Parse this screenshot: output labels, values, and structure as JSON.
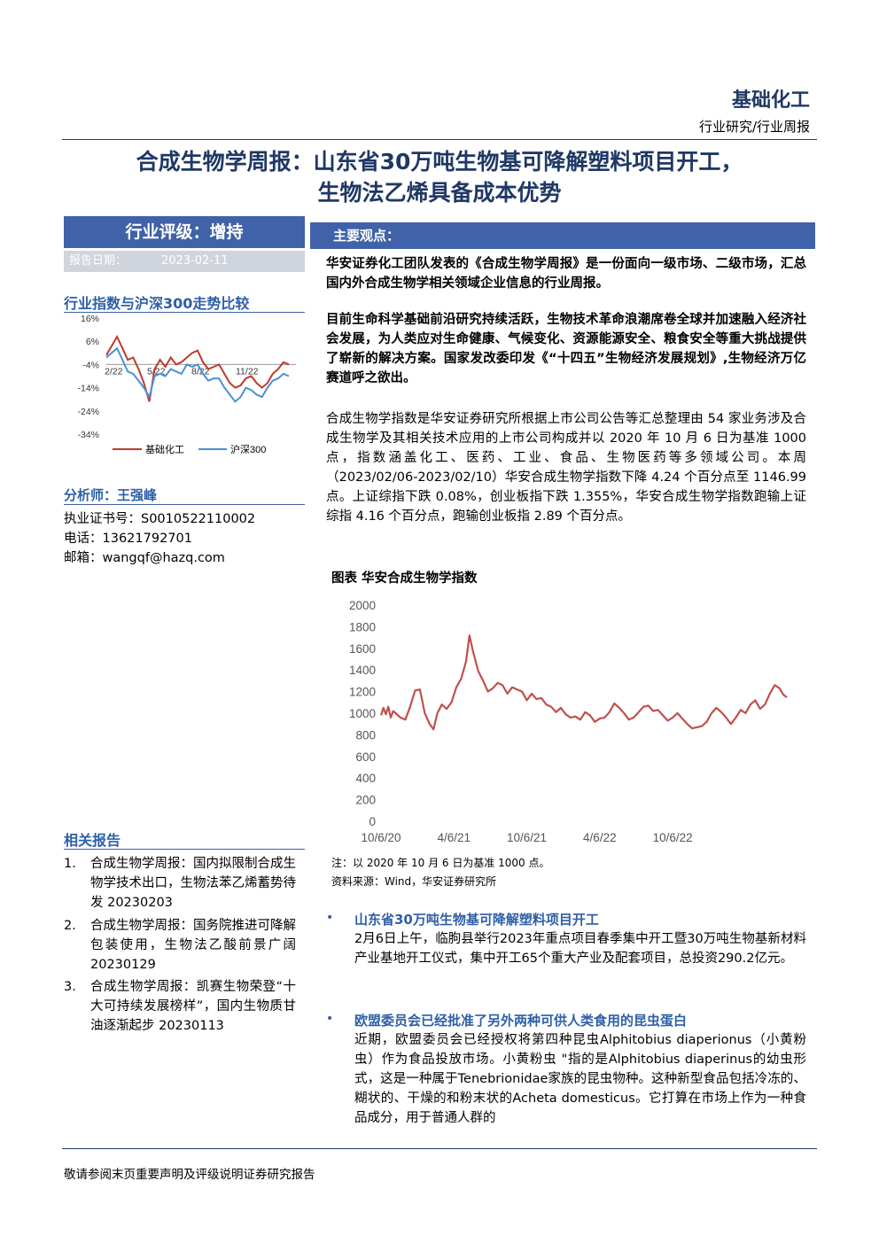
{
  "header": {
    "sector": "基础化工",
    "category": "行业研究/行业周报"
  },
  "title": {
    "line1": "合成生物学周报：山东省30万吨生物基可降解塑料项目开工，",
    "line2": "生物法乙烯具备成本优势"
  },
  "sidebar": {
    "rating_label": "行业评级：增持",
    "report_date_label": "报告日期：",
    "report_date": "2023-02-11",
    "index_compare_title": "行业指数与沪深300走势比较",
    "mini_chart": {
      "y_ticks": [
        "16%",
        "6%",
        "-4%",
        "-14%",
        "-24%",
        "-34%"
      ],
      "x_ticks": [
        "2/22",
        "5/22",
        "8/22",
        "11/22"
      ],
      "legend": [
        "基础化工",
        "沪深300"
      ],
      "colors": {
        "series1": "#c0392b",
        "series2": "#4a90d9"
      }
    },
    "analyst_label": "分析师：王强峰",
    "cert": "执业证书号：S0010522110002",
    "phone": "电话：13621792701",
    "email": "邮箱：wangqf@hazq.com",
    "related_title": "相关报告",
    "related": [
      {
        "num": "1.",
        "text": "合成生物学周报：国内拟限制合成生物学技术出口，生物法苯乙烯蓄势待发 20230203"
      },
      {
        "num": "2.",
        "text": "合成生物学周报：国务院推进可降解包装使用，生物法乙酸前景广阔 20230129"
      },
      {
        "num": "3.",
        "text": "合成生物学周报：凯赛生物荣登“十大可持续发展榜样”，国内生物质甘油逐渐起步 20230113"
      }
    ]
  },
  "main": {
    "key_points_label": "主要观点：",
    "p1": "华安证券化工团队发表的《合成生物学周报》是一份面向一级市场、二级市场，汇总国内外合成生物学相关领域企业信息的行业周报。",
    "p2": "目前生命科学基础前沿研究持续活跃，生物技术革命浪潮席卷全球并加速融入经济社会发展，为人类应对生命健康、气候变化、资源能源安全、粮食安全等重大挑战提供了崭新的解决方案。国家发改委印发《“十四五”生物经济发展规划》,生物经济万亿赛道呼之欲出。",
    "p3": "合成生物学指数是华安证券研究所根据上市公司公告等汇总整理由 54 家业务涉及合成生物学及其相关技术应用的上市公司构成并以 2020 年 10 月 6 日为基准 1000 点，指数涵盖化工、医药、工业、食品、生物医药等多领域公司。本周（2023/02/06-2023/02/10）华安合成生物学指数下降 4.24 个百分点至 1146.99 点。上证综指下跌 0.08%，创业板指下跌 1.355%，华安合成生物学指数跑输上证综指 4.16 个百分点，跑输创业板指 2.89 个百分点。",
    "chart_title": "图表 华安合成生物学指数",
    "chart_note": "注：以 2020 年 10 月 6 日为基准 1000 点。",
    "chart_source": "资料来源：Wind，华安证券研究所",
    "news1_title": "山东省30万吨生物基可降解塑料项目开工",
    "news1_body": "2月6日上午，临朐县举行2023年重点项目春季集中开工暨30万吨生物基新材料产业基地开工仪式，集中开工65个重大产业及配套项目，总投资290.2亿元。",
    "news2_title": "欧盟委员会已经批准了另外两种可供人类食用的昆虫蛋白",
    "news2_body": "近期，欧盟委员会已经授权将第四种昆虫Alphitobius diaperionus（小黄粉虫）作为食品投放市场。小黄粉虫 \"指的是Alphitobius diaperinus的幼虫形式，这是一种属于Tenebrionidae家族的昆虫物种。这种新型食品包括冷冻的、糊状的、干燥的和粉末状的Acheta domesticus。它打算在市场上作为一种食品成分，用于普通人群的"
  },
  "footer": {
    "disclaimer": "敬请参阅末页重要声明及评级说明证券研究报告"
  },
  "chart_data": {
    "type": "line",
    "title": "图表 华安合成生物学指数",
    "x_ticks": [
      "10/6/20",
      "4/6/21",
      "10/6/21",
      "4/6/22",
      "10/6/22"
    ],
    "ylim": [
      0,
      2000
    ],
    "y_ticks": [
      0,
      200,
      400,
      600,
      800,
      1000,
      1200,
      1400,
      1600,
      1800,
      2000
    ],
    "grid": false,
    "color": "#c0504d",
    "series": [
      {
        "x": [
          0,
          5,
          10,
          15,
          20,
          25,
          30,
          40,
          50,
          60,
          70,
          80,
          90,
          100,
          108,
          116,
          125,
          135,
          145,
          155,
          165,
          175,
          182,
          190,
          200,
          210,
          220,
          230,
          240,
          250,
          260,
          270,
          280,
          290,
          300,
          310,
          320,
          330,
          340,
          350,
          360,
          370,
          380,
          390,
          400,
          410,
          420,
          430,
          440,
          450,
          460,
          470,
          480,
          490,
          500,
          510,
          520,
          530,
          540,
          550,
          560,
          570,
          580,
          590,
          600,
          610,
          620,
          630,
          640,
          650,
          660,
          670,
          680,
          690,
          700,
          710,
          720,
          730,
          740,
          750,
          760,
          770,
          780,
          790,
          800,
          810,
          820,
          828,
          835
        ],
        "values": [
          980,
          1050,
          990,
          1060,
          960,
          1020,
          1000,
          960,
          940,
          1060,
          1210,
          1220,
          1000,
          900,
          850,
          1000,
          1080,
          1040,
          1100,
          1240,
          1320,
          1480,
          1720,
          1560,
          1390,
          1300,
          1200,
          1230,
          1280,
          1260,
          1180,
          1240,
          1220,
          1200,
          1120,
          1180,
          1130,
          1140,
          1080,
          1060,
          1010,
          1050,
          990,
          960,
          970,
          940,
          1010,
          980,
          920,
          950,
          960,
          1010,
          1090,
          1050,
          1000,
          940,
          960,
          1010,
          1060,
          1070,
          1020,
          1030,
          980,
          930,
          960,
          1000,
          950,
          900,
          860,
          870,
          880,
          920,
          1000,
          1050,
          1010,
          960,
          900,
          960,
          1030,
          1000,
          1080,
          1120,
          1040,
          1080,
          1180,
          1260,
          1230,
          1170,
          1147
        ]
      }
    ]
  }
}
